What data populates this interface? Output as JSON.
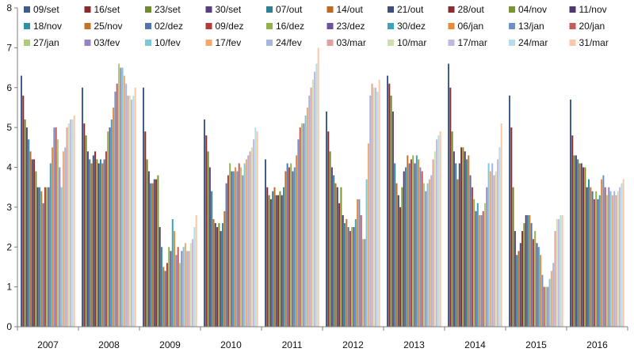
{
  "chart_data": {
    "type": "bar",
    "title": "",
    "xlabel": "",
    "ylabel": "",
    "ylim": [
      0,
      8
    ],
    "yticks": [
      0,
      1,
      2,
      3,
      4,
      5,
      6,
      7,
      8
    ],
    "grid": false,
    "legend_position": "top",
    "categories": [
      "2007",
      "2008",
      "2009",
      "2010",
      "2011",
      "2012",
      "2013",
      "2014",
      "2015",
      "2016"
    ],
    "series": [
      {
        "name": "09/set",
        "color": "#3f5f8a",
        "values": [
          6.3,
          6.0,
          6.0,
          5.2,
          4.2,
          5.4,
          6.3,
          6.6,
          5.8,
          5.7
        ]
      },
      {
        "name": "16/set",
        "color": "#8b2a2a",
        "values": [
          5.8,
          5.1,
          4.9,
          4.8,
          3.5,
          4.9,
          6.1,
          6.0,
          5.0,
          4.8
        ]
      },
      {
        "name": "23/set",
        "color": "#6f8a2f",
        "values": [
          5.2,
          4.8,
          4.2,
          4.4,
          3.3,
          4.4,
          5.8,
          4.9,
          3.5,
          4.3
        ]
      },
      {
        "name": "30/set",
        "color": "#5a3f7d",
        "values": [
          5.0,
          4.4,
          3.9,
          4.0,
          3.2,
          4.0,
          5.4,
          4.4,
          2.4,
          4.3
        ]
      },
      {
        "name": "07/out",
        "color": "#2f8096",
        "values": [
          4.7,
          4.2,
          3.6,
          3.4,
          3.4,
          3.8,
          4.1,
          4.1,
          1.8,
          4.2
        ]
      },
      {
        "name": "14/out",
        "color": "#c06a1f",
        "values": [
          4.4,
          4.1,
          3.6,
          2.7,
          3.5,
          3.6,
          3.6,
          3.7,
          1.9,
          4.1
        ]
      },
      {
        "name": "21/out",
        "color": "#3e4f7a",
        "values": [
          4.2,
          4.3,
          3.7,
          2.6,
          3.3,
          3.5,
          3.3,
          4.1,
          2.1,
          4.1
        ]
      },
      {
        "name": "28/out",
        "color": "#8c2c30",
        "values": [
          4.2,
          4.4,
          3.7,
          2.5,
          3.3,
          3.1,
          3.0,
          4.5,
          2.4,
          4.0
        ]
      },
      {
        "name": "04/nov",
        "color": "#7a9530",
        "values": [
          3.9,
          4.2,
          3.8,
          2.6,
          3.4,
          3.5,
          3.5,
          4.5,
          2.6,
          4.0
        ]
      },
      {
        "name": "11/nov",
        "color": "#4e3670",
        "values": [
          3.5,
          4.1,
          2.5,
          2.4,
          3.3,
          2.8,
          3.9,
          4.4,
          2.8,
          3.5
        ]
      },
      {
        "name": "18/nov",
        "color": "#2f90a8",
        "values": [
          3.5,
          4.2,
          2.0,
          2.6,
          3.5,
          2.6,
          4.0,
          4.2,
          2.8,
          3.7
        ]
      },
      {
        "name": "25/nov",
        "color": "#c57427",
        "values": [
          3.4,
          4.1,
          1.5,
          2.9,
          3.9,
          2.7,
          4.3,
          4.3,
          2.8,
          3.5
        ]
      },
      {
        "name": "02/dez",
        "color": "#4f74b0",
        "values": [
          3.1,
          4.2,
          1.4,
          3.6,
          4.1,
          2.5,
          4.1,
          3.8,
          2.6,
          3.4
        ]
      },
      {
        "name": "09/dez",
        "color": "#b13a3a",
        "values": [
          3.5,
          4.4,
          1.6,
          3.8,
          4.0,
          2.4,
          4.2,
          3.5,
          2.2,
          3.2
        ]
      },
      {
        "name": "16/dez",
        "color": "#93b34a",
        "values": [
          3.5,
          4.9,
          2.0,
          4.1,
          4.1,
          2.5,
          4.3,
          3.2,
          2.4,
          3.4
        ]
      },
      {
        "name": "23/dez",
        "color": "#6b52a0",
        "values": [
          3.5,
          5.0,
          1.9,
          3.9,
          3.9,
          2.5,
          4.1,
          2.9,
          2.1,
          3.2
        ]
      },
      {
        "name": "30/dez",
        "color": "#3aa3bd",
        "values": [
          4.1,
          5.2,
          2.7,
          3.9,
          4.0,
          2.7,
          4.3,
          3.1,
          2.0,
          3.3
        ]
      },
      {
        "name": "06/jan",
        "color": "#e88a3a",
        "values": [
          4.5,
          5.5,
          2.4,
          4.0,
          4.3,
          3.2,
          4.2,
          2.8,
          1.8,
          3.7
        ]
      },
      {
        "name": "13/jan",
        "color": "#6f8fc8",
        "values": [
          5.0,
          5.9,
          1.8,
          3.9,
          4.7,
          3.2,
          4.0,
          2.8,
          1.3,
          3.8
        ]
      },
      {
        "name": "20/jan",
        "color": "#c95858",
        "values": [
          5.0,
          6.1,
          2.0,
          4.1,
          5.0,
          2.8,
          3.9,
          2.9,
          1.0,
          3.5
        ]
      },
      {
        "name": "27/jan",
        "color": "#b0c97a",
        "values": [
          4.7,
          6.6,
          1.6,
          4.0,
          5.1,
          2.2,
          3.6,
          3.1,
          1.0,
          3.3
        ]
      },
      {
        "name": "03/fev",
        "color": "#9584c0",
        "values": [
          4.0,
          6.5,
          1.9,
          3.8,
          5.1,
          2.2,
          3.4,
          3.5,
          1.0,
          3.5
        ]
      },
      {
        "name": "10/fev",
        "color": "#7cc8db",
        "values": [
          3.5,
          6.5,
          2.0,
          4.1,
          5.3,
          3.7,
          3.6,
          4.1,
          1.2,
          3.4
        ]
      },
      {
        "name": "17/fev",
        "color": "#f2a86b",
        "values": [
          4.4,
          6.3,
          2.1,
          4.2,
          5.5,
          4.6,
          3.7,
          3.9,
          1.4,
          3.3
        ]
      },
      {
        "name": "24/fev",
        "color": "#a6b7de",
        "values": [
          4.5,
          6.1,
          1.9,
          4.3,
          5.8,
          5.8,
          3.8,
          4.1,
          1.6,
          3.4
        ]
      },
      {
        "name": "03/mar",
        "color": "#e0a0a0",
        "values": [
          5.0,
          5.8,
          1.9,
          4.4,
          6.0,
          6.1,
          4.2,
          3.8,
          2.4,
          3.3
        ]
      },
      {
        "name": "10/mar",
        "color": "#cfe0b0",
        "values": [
          5.1,
          5.8,
          2.1,
          4.5,
          6.2,
          6.0,
          4.4,
          3.9,
          2.7,
          3.4
        ]
      },
      {
        "name": "17/mar",
        "color": "#c2b8dc",
        "values": [
          5.2,
          5.7,
          2.2,
          4.7,
          6.4,
          6.0,
          4.7,
          4.2,
          2.7,
          3.5
        ]
      },
      {
        "name": "24/mar",
        "color": "#b5dde8",
        "values": [
          5.2,
          5.8,
          2.5,
          5.0,
          6.6,
          5.9,
          4.8,
          4.5,
          2.8,
          3.6
        ]
      },
      {
        "name": "31/mar",
        "color": "#f8c8a8",
        "values": [
          5.3,
          6.0,
          2.8,
          4.9,
          7.0,
          6.2,
          4.9,
          5.1,
          2.8,
          3.7
        ]
      }
    ]
  }
}
